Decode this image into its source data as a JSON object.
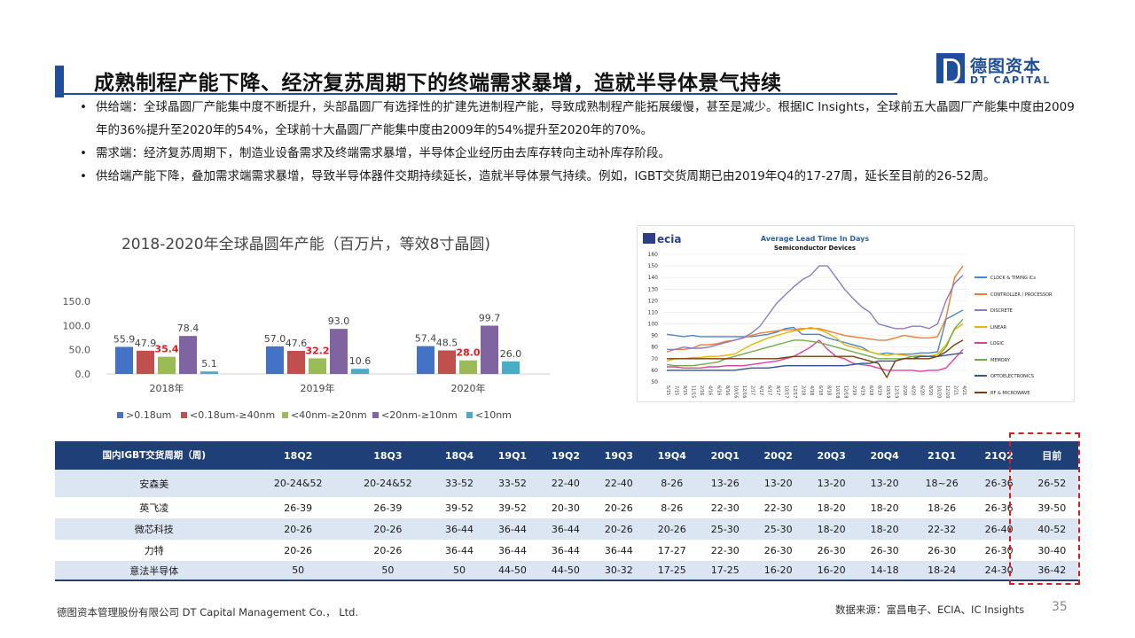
{
  "header": {
    "title": "成熟制程产能下降、经济复苏周期下的终端需求暴增，造就半导体景气持续",
    "logo_cn": "德图资本",
    "logo_en": "DT CAPITAL"
  },
  "bullets": [
    "供给端：全球晶圆厂产能集中度不断提升，头部晶圆厂有选择性的扩建先进制程产能，导致成熟制程产能拓展缓慢，甚至是减少。根据IC Insights，全球前五大晶圆厂产能集中度由2009年的36%提升至2020年的54%，全球前十大晶圆厂产能集中度由2009年的54%提升至2020年的70%。",
    "需求端：经济复苏周期下，制造业设备需求及终端需求暴增，半导体企业经历由去库存转向主动补库存阶段。",
    "供给端产能下降，叠加需求端需求暴增，导致半导体器件交期持续延长，造就半导体景气持续。例如，IGBT交货周期已由2019年Q4的17-27周，延长至目前的26-52周。"
  ],
  "chart_data": [
    {
      "type": "bar",
      "title": "2018-2020年全球晶圆年产能（百万片，等效8寸晶圆)",
      "categories": [
        "2018年",
        "2019年",
        "2020年"
      ],
      "series": [
        {
          "name": ">0.18um",
          "values": [
            55.9,
            57.0,
            57.4
          ],
          "color": "#4472c4"
        },
        {
          "name": "<0.18um-≥40nm",
          "values": [
            47.9,
            47.6,
            48.5
          ],
          "color": "#c0504d"
        },
        {
          "name": "<40nm-≥20nm",
          "values": [
            35.4,
            32.2,
            28.0
          ],
          "color": "#9bbb59"
        },
        {
          "name": "<20nm-≥10nm",
          "values": [
            78.4,
            93.0,
            99.7
          ],
          "color": "#8064a2"
        },
        {
          "name": "<10nm",
          "values": [
            5.1,
            10.6,
            26.0
          ],
          "color": "#4bacc6"
        }
      ],
      "yticks": [
        "150.0",
        "100.0",
        "50.0",
        "0.0"
      ],
      "ylim": [
        0,
        150
      ],
      "highlight_series": "<40nm-≥20nm",
      "highlight_color": "#e02020",
      "legend": "bottom"
    },
    {
      "type": "line",
      "brand": "ecia",
      "title": "Average Lead Time In Days",
      "subtitle": "Semiconductor Devices",
      "ylim": [
        50,
        160
      ],
      "yticks": [
        "160",
        "150",
        "140",
        "130",
        "120",
        "110",
        "100",
        "90",
        "80",
        "70",
        "60",
        "50"
      ],
      "xticks": [
        "5/15",
        "7/15",
        "9/15",
        "11/15",
        "2/16",
        "4/16",
        "6/16",
        "8/16",
        "10/16",
        "12/16",
        "2/17",
        "4/17",
        "6/17",
        "8/17",
        "10/17",
        "12/17",
        "2/18",
        "4/18",
        "6/18",
        "8/18",
        "10/18",
        "12/18",
        "2/19",
        "4/19",
        "6/19",
        "8/19",
        "10/19",
        "12/19",
        "2/20",
        "4/20",
        "6/20",
        "8/20",
        "10/20",
        "12/20",
        "2/21",
        "4/21"
      ],
      "legend": "right",
      "series": [
        {
          "name": "CLOCK & TIMING ICs",
          "color": "#4a86c8",
          "values": [
            91,
            90,
            89,
            90,
            89,
            89,
            89,
            89,
            89,
            89,
            89,
            90,
            91,
            93,
            96,
            97,
            91,
            91,
            91,
            88,
            86,
            84,
            82,
            80,
            76,
            74,
            75,
            74,
            74,
            74,
            75,
            75,
            76,
            104,
            108,
            112
          ]
        },
        {
          "name": "CONTROLLER / PROCESSOR",
          "color": "#ed7d31",
          "values": [
            76,
            78,
            78,
            79,
            82,
            82,
            83,
            85,
            86,
            88,
            90,
            92,
            93,
            94,
            95,
            95,
            96,
            96,
            96,
            94,
            92,
            90,
            89,
            88,
            87,
            86,
            86,
            88,
            90,
            89,
            88,
            88,
            89,
            105,
            140,
            150
          ]
        },
        {
          "name": "DISCRETE",
          "color": "#8e7cc3",
          "values": [
            78,
            78,
            80,
            79,
            79,
            80,
            82,
            84,
            86,
            88,
            92,
            98,
            108,
            118,
            125,
            132,
            138,
            142,
            150,
            150,
            140,
            130,
            122,
            115,
            110,
            100,
            98,
            96,
            96,
            98,
            98,
            96,
            100,
            120,
            135,
            142
          ]
        },
        {
          "name": "LINEAR",
          "color": "#e6b800",
          "values": [
            68,
            70,
            70,
            71,
            71,
            72,
            72,
            73,
            74,
            78,
            82,
            85,
            88,
            90,
            92,
            94,
            95,
            97,
            95,
            92,
            88,
            82,
            80,
            78,
            76,
            74,
            73,
            74,
            73,
            72,
            73,
            72,
            74,
            82,
            95,
            100
          ]
        },
        {
          "name": "LOGIC",
          "color": "#e040a0",
          "values": [
            63,
            63,
            62,
            62,
            62,
            63,
            63,
            64,
            64,
            64,
            65,
            66,
            67,
            68,
            70,
            72,
            76,
            80,
            86,
            78,
            72,
            70,
            66,
            65,
            64,
            62,
            60,
            60,
            60,
            60,
            59,
            60,
            60,
            62,
            70,
            78
          ]
        },
        {
          "name": "MEMORY",
          "color": "#70ad47",
          "values": [
            65,
            64,
            64,
            64,
            65,
            66,
            67,
            70,
            72,
            74,
            76,
            78,
            80,
            82,
            84,
            86,
            86,
            85,
            84,
            82,
            80,
            78,
            76,
            74,
            72,
            70,
            70,
            70,
            70,
            72,
            72,
            72,
            72,
            80,
            96,
            104
          ]
        },
        {
          "name": "OPTOELECTRONICS",
          "color": "#2f5597",
          "values": [
            60,
            60,
            60,
            60,
            60,
            60,
            60,
            60,
            60,
            61,
            62,
            62,
            62,
            63,
            64,
            64,
            64,
            64,
            64,
            64,
            64,
            64,
            65,
            66,
            66,
            68,
            68,
            68,
            70,
            70,
            72,
            72,
            72,
            73,
            74,
            75
          ]
        },
        {
          "name": "RF & MICROWAVE",
          "color": "#7a3e10",
          "values": [
            70,
            70,
            70,
            70,
            70,
            70,
            70,
            70,
            70,
            70,
            70,
            70,
            70,
            70,
            71,
            72,
            72,
            72,
            72,
            72,
            72,
            72,
            72,
            70,
            68,
            66,
            54,
            68,
            70,
            70,
            70,
            70,
            72,
            76,
            82,
            86
          ]
        }
      ]
    }
  ],
  "table": {
    "corner": "国内IGBT交货周期（周)",
    "headers": [
      "18Q2",
      "18Q3",
      "18Q4",
      "19Q1",
      "19Q2",
      "19Q3",
      "19Q4",
      "20Q1",
      "20Q2",
      "20Q3",
      "20Q4",
      "21Q1",
      "21Q2",
      "目前"
    ],
    "rows": [
      {
        "name": "安森美",
        "cells": [
          "20-24&52",
          "20-24&52",
          "33-52",
          "33-52",
          "22-40",
          "22-40",
          "8-26",
          "13-26",
          "13-20",
          "13-20",
          "13-20",
          "18~26",
          "26-36",
          "26-52"
        ]
      },
      {
        "name": "英飞凌",
        "cells": [
          "26-39",
          "26-39",
          "39-52",
          "39-52",
          "20-30",
          "20-26",
          "8-26",
          "22-30",
          "22-30",
          "18-20",
          "18-20",
          "18-26",
          "26-36",
          "39-50"
        ]
      },
      {
        "name": "微芯科技",
        "cells": [
          "20-26",
          "20-26",
          "36-44",
          "36-44",
          "36-44",
          "20-26",
          "20-26",
          "25-30",
          "25-30",
          "18-20",
          "18-20",
          "22-32",
          "26-40",
          "40-52"
        ]
      },
      {
        "name": "力特",
        "cells": [
          "20-26",
          "20-26",
          "36-44",
          "36-44",
          "36-44",
          "36-44",
          "17-27",
          "22-30",
          "26-30",
          "26-30",
          "26-30",
          "26-30",
          "26-30",
          "30-40"
        ]
      },
      {
        "name": "意法半导体",
        "cells": [
          "50",
          "50",
          "50",
          "44-50",
          "44-50",
          "30-32",
          "17-25",
          "17-25",
          "16-20",
          "16-20",
          "14-18",
          "18-24",
          "24-30",
          "36-42"
        ]
      }
    ]
  },
  "footer": {
    "company": "德图资本管理股份有限公司 DT Capital Management Co.， Ltd.",
    "source": "数据来源：富昌电子、ECIA、IC Insights",
    "page": "35"
  }
}
